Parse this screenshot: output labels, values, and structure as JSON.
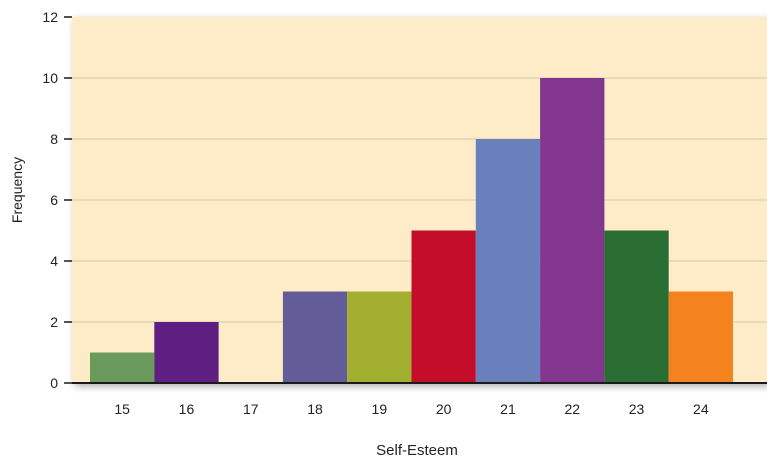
{
  "chart_data": {
    "type": "bar",
    "xlabel": "Self-Esteem",
    "ylabel": "Frequency",
    "ylim": [
      0,
      12
    ],
    "yticks": [
      0,
      2,
      4,
      6,
      8,
      10,
      12
    ],
    "categories": [
      "15",
      "16",
      "17",
      "18",
      "19",
      "20",
      "21",
      "22",
      "23",
      "24"
    ],
    "values": [
      1,
      2,
      0,
      3,
      3,
      5,
      8,
      10,
      5,
      3
    ],
    "bar_colors": [
      "#6a9a5c",
      "#5e1e82",
      "#5e1e82",
      "#625d99",
      "#a2ae2e",
      "#c40d28",
      "#6a80bd",
      "#82368e",
      "#2b6e33",
      "#f4821e"
    ],
    "grid": true,
    "legend": "none"
  },
  "colors": {
    "plot_background": "#fdecc7",
    "gridline": "#d8c9a8",
    "axis": "#1a1a1a"
  }
}
